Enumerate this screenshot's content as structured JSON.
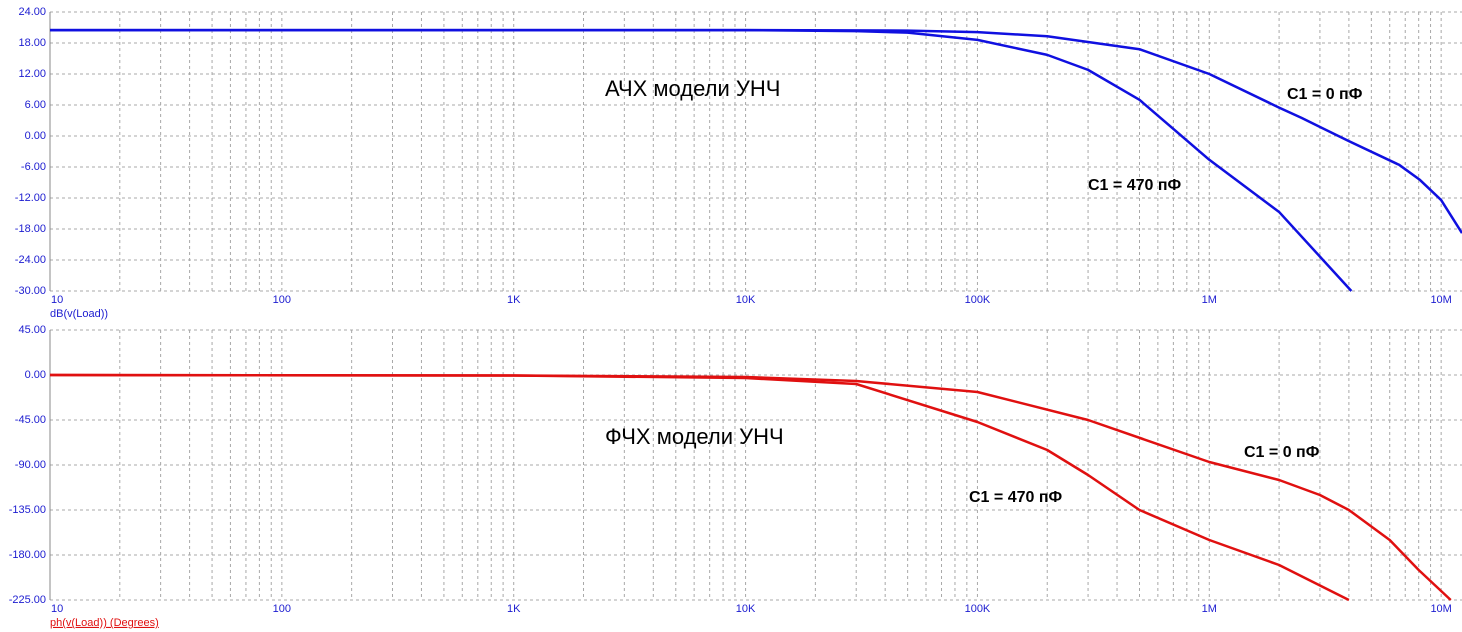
{
  "chart_data": [
    {
      "type": "line",
      "title": "АЧХ модели УНЧ",
      "ylabel": "dB(v(Load))",
      "log_x": true,
      "grid": true,
      "axis_color": "#1c1cd0",
      "xlim": [
        10,
        12300000
      ],
      "xticks": [
        10,
        100,
        {
          "value": 1000,
          "label": "1K"
        },
        {
          "value": 10000,
          "label": "10K"
        },
        {
          "value": 100000,
          "label": "100K"
        },
        {
          "value": 1000000,
          "label": "1M"
        },
        {
          "value": 10000000,
          "label": "10M"
        }
      ],
      "ylim": [
        -30,
        24
      ],
      "yticks": [
        {
          "value": 24,
          "label": "24.00"
        },
        {
          "value": 18,
          "label": "18.00"
        },
        {
          "value": 12,
          "label": "12.00"
        },
        {
          "value": 6,
          "label": "6.00"
        },
        {
          "value": 0,
          "label": "0.00"
        },
        {
          "value": -6,
          "label": "-6.00"
        },
        {
          "value": -12,
          "label": "-12.00"
        },
        {
          "value": -18,
          "label": "-18.00"
        },
        {
          "value": -24,
          "label": "-24.00"
        },
        {
          "value": -30,
          "label": "-30.00"
        }
      ],
      "series": [
        {
          "name": "C1 = 0 пФ",
          "color": "#1010e0",
          "x": [
            10,
            1000,
            10000,
            50000,
            100000,
            200000,
            500000,
            1000000,
            2000000,
            2500000,
            4000000,
            6600000,
            8100000,
            10000000,
            12300000
          ],
          "values": [
            20.5,
            20.5,
            20.5,
            20.4,
            20.1,
            19.3,
            16.8,
            12,
            5.5,
            3.5,
            -1,
            -5.6,
            -8.5,
            -12.4,
            -18.8
          ]
        },
        {
          "name": "C1 = 470 пФ",
          "color": "#1010e0",
          "x": [
            10,
            1000,
            10000,
            30000,
            50000,
            100000,
            200000,
            300000,
            500000,
            1000000,
            2000000,
            4100000
          ],
          "values": [
            20.5,
            20.5,
            20.5,
            20.3,
            20,
            18.6,
            15.7,
            12.8,
            7,
            -4.6,
            -14.7,
            -30
          ]
        }
      ]
    },
    {
      "type": "line",
      "title": "ФЧХ модели УНЧ",
      "ylabel": "ph(v(Load)) (Degrees)",
      "log_x": true,
      "grid": true,
      "axis_color": "#1c1cd0",
      "ylabel_color": "#e01010",
      "xlim": [
        10,
        12300000
      ],
      "xticks": [
        10,
        100,
        {
          "value": 1000,
          "label": "1K"
        },
        {
          "value": 10000,
          "label": "10K"
        },
        {
          "value": 100000,
          "label": "100K"
        },
        {
          "value": 1000000,
          "label": "1M"
        },
        {
          "value": 10000000,
          "label": "10M"
        }
      ],
      "ylim": [
        -225,
        45
      ],
      "yticks": [
        {
          "value": 45,
          "label": "45.00"
        },
        {
          "value": 0,
          "label": "0.00"
        },
        {
          "value": -45,
          "label": "-45.00"
        },
        {
          "value": -90,
          "label": "-90.00"
        },
        {
          "value": -135,
          "label": "-135.00"
        },
        {
          "value": -180,
          "label": "-180.00"
        },
        {
          "value": -225,
          "label": "-225.00"
        }
      ],
      "series": [
        {
          "name": "C1 = 0 пФ",
          "color": "#e01010",
          "x": [
            10,
            1000,
            10000,
            30000,
            100000,
            300000,
            1000000,
            2000000,
            3000000,
            4000000,
            6000000,
            8000000,
            11000000
          ],
          "values": [
            0,
            -0.5,
            -2,
            -6,
            -17,
            -45,
            -87,
            -105,
            -120,
            -135,
            -165,
            -195,
            -225
          ]
        },
        {
          "name": "C1 = 470 пФ",
          "color": "#e01010",
          "x": [
            10,
            1000,
            10000,
            30000,
            100000,
            200000,
            300000,
            500000,
            1000000,
            2000000,
            4000000
          ],
          "values": [
            0,
            -0.5,
            -3,
            -9,
            -47,
            -75,
            -100,
            -135,
            -165,
            -190,
            -225
          ]
        }
      ]
    }
  ]
}
